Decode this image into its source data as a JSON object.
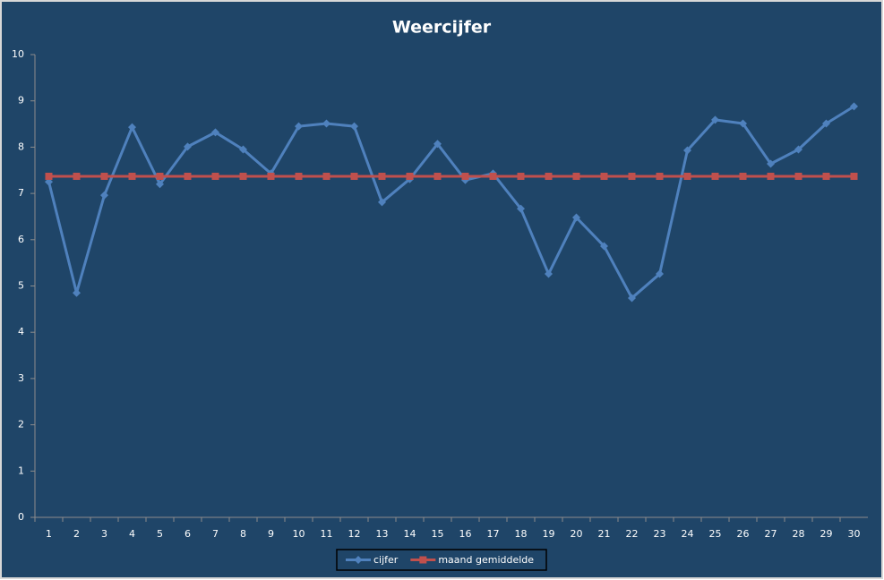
{
  "chart_data": {
    "type": "line",
    "title": "Weercijfer",
    "categories": [
      "1",
      "2",
      "3",
      "4",
      "5",
      "6",
      "7",
      "8",
      "9",
      "10",
      "11",
      "12",
      "13",
      "14",
      "15",
      "16",
      "17",
      "18",
      "19",
      "20",
      "21",
      "22",
      "23",
      "24",
      "25",
      "26",
      "27",
      "28",
      "29",
      "30"
    ],
    "series": [
      {
        "name": "cijfer",
        "color": "#4f81bd",
        "marker": "diamond",
        "values": [
          7.25,
          4.85,
          6.96,
          8.43,
          7.2,
          8.01,
          8.32,
          7.95,
          7.43,
          8.45,
          8.51,
          8.45,
          6.81,
          7.31,
          8.07,
          7.29,
          7.43,
          6.67,
          5.26,
          6.48,
          5.86,
          4.74,
          5.26,
          7.93,
          8.59,
          8.51,
          7.64,
          7.95,
          8.51,
          8.88
        ]
      },
      {
        "name": "maand gemiddelde",
        "color": "#c0504d",
        "marker": "square",
        "values": [
          7.37,
          7.37,
          7.37,
          7.37,
          7.37,
          7.37,
          7.37,
          7.37,
          7.37,
          7.37,
          7.37,
          7.37,
          7.37,
          7.37,
          7.37,
          7.37,
          7.37,
          7.37,
          7.37,
          7.37,
          7.37,
          7.37,
          7.37,
          7.37,
          7.37,
          7.37,
          7.37,
          7.37,
          7.37,
          7.37
        ]
      }
    ],
    "ylim": [
      0,
      10
    ],
    "yticks": [
      0,
      1,
      2,
      3,
      4,
      5,
      6,
      7,
      8,
      9,
      10
    ],
    "grid": false,
    "legend": "bottom"
  }
}
